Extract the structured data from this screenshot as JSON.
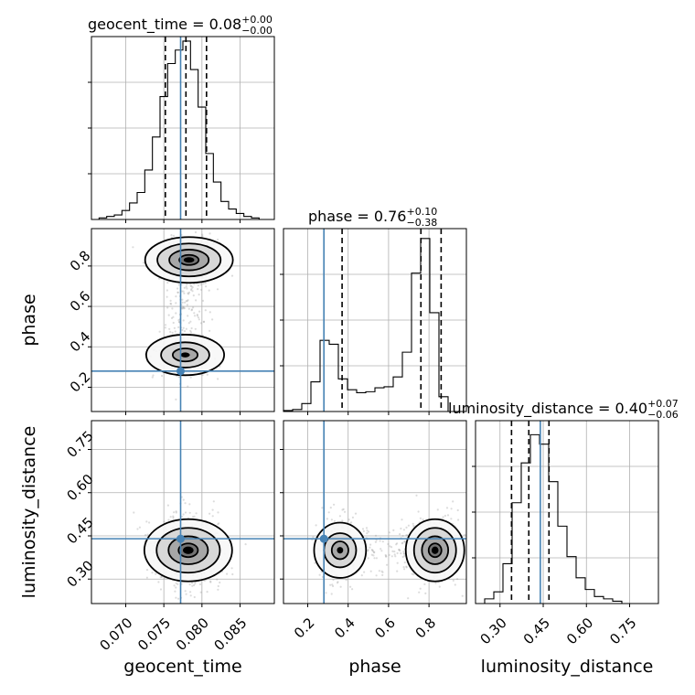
{
  "colors": {
    "truth": "#4682b4",
    "contour": "#000000",
    "samples": "#9a9a9a"
  },
  "chart_data": {
    "type": "corner",
    "parameters": [
      "geocent_time",
      "phase",
      "luminosity_distance"
    ],
    "titles": [
      {
        "text": "geocent_time = 0.08",
        "sup": "+0.00",
        "sub": "−0.00"
      },
      {
        "text": "phase = 0.76",
        "sup": "+0.10",
        "sub": "−0.38"
      },
      {
        "text": "luminosity_distance = 0.40",
        "sup": "+0.07",
        "sub": "−0.06"
      }
    ],
    "axis_ranges": [
      [
        0.0655,
        0.0895
      ],
      [
        0.08,
        0.985
      ],
      [
        0.215,
        0.85
      ]
    ],
    "tick_values": [
      [
        0.07,
        0.075,
        0.08,
        0.085
      ],
      [
        0.2,
        0.4,
        0.6,
        0.8
      ],
      [
        0.3,
        0.45,
        0.6,
        0.75
      ]
    ],
    "tick_labels": [
      [
        "0.070",
        "0.075",
        "0.080",
        "0.085"
      ],
      [
        "0.2",
        "0.4",
        "0.6",
        "0.8"
      ],
      [
        "0.30",
        "0.45",
        "0.60",
        "0.75"
      ]
    ],
    "truths": [
      0.0772,
      0.28,
      0.44
    ],
    "quantiles": [
      [
        0.0752,
        0.0779,
        0.0806
      ],
      [
        0.37,
        0.76,
        0.86
      ],
      [
        0.34,
        0.4,
        0.47
      ]
    ],
    "histograms": [
      {
        "edges_start": 0.0655,
        "edges_end": 0.0895,
        "counts": [
          0,
          1,
          2,
          3,
          6,
          11,
          18,
          33,
          55,
          82,
          104,
          113,
          119,
          100,
          75,
          44,
          25,
          12,
          7,
          4,
          2,
          1,
          0,
          0
        ],
        "ylim": [
          0,
          122
        ]
      },
      {
        "edges_start": 0.08,
        "edges_end": 0.985,
        "counts": [
          1,
          2,
          8,
          30,
          72,
          68,
          33,
          22,
          19,
          20,
          24,
          25,
          35,
          60,
          140,
          175,
          100,
          15,
          0,
          0
        ],
        "ylim": [
          0,
          185
        ]
      },
      {
        "edges_start": 0.215,
        "edges_end": 0.85,
        "counts": [
          0,
          2,
          5,
          17,
          43,
          60,
          72,
          68,
          52,
          33,
          20,
          11,
          6,
          3,
          2,
          1,
          0,
          0,
          0,
          0
        ],
        "ylim": [
          0,
          78
        ]
      }
    ],
    "density_modes": [
      {
        "x_param": 0,
        "y_param": 1,
        "peaks": [
          [
            0.0783,
            0.83,
            1.0
          ],
          [
            0.0778,
            0.36,
            0.55
          ]
        ]
      },
      {
        "x_param": 0,
        "y_param": 2,
        "peaks": [
          [
            0.0782,
            0.4,
            1.0
          ]
        ]
      },
      {
        "x_param": 1,
        "y_param": 2,
        "peaks": [
          [
            0.83,
            0.4,
            1.0
          ],
          [
            0.36,
            0.4,
            0.55
          ]
        ]
      }
    ]
  }
}
